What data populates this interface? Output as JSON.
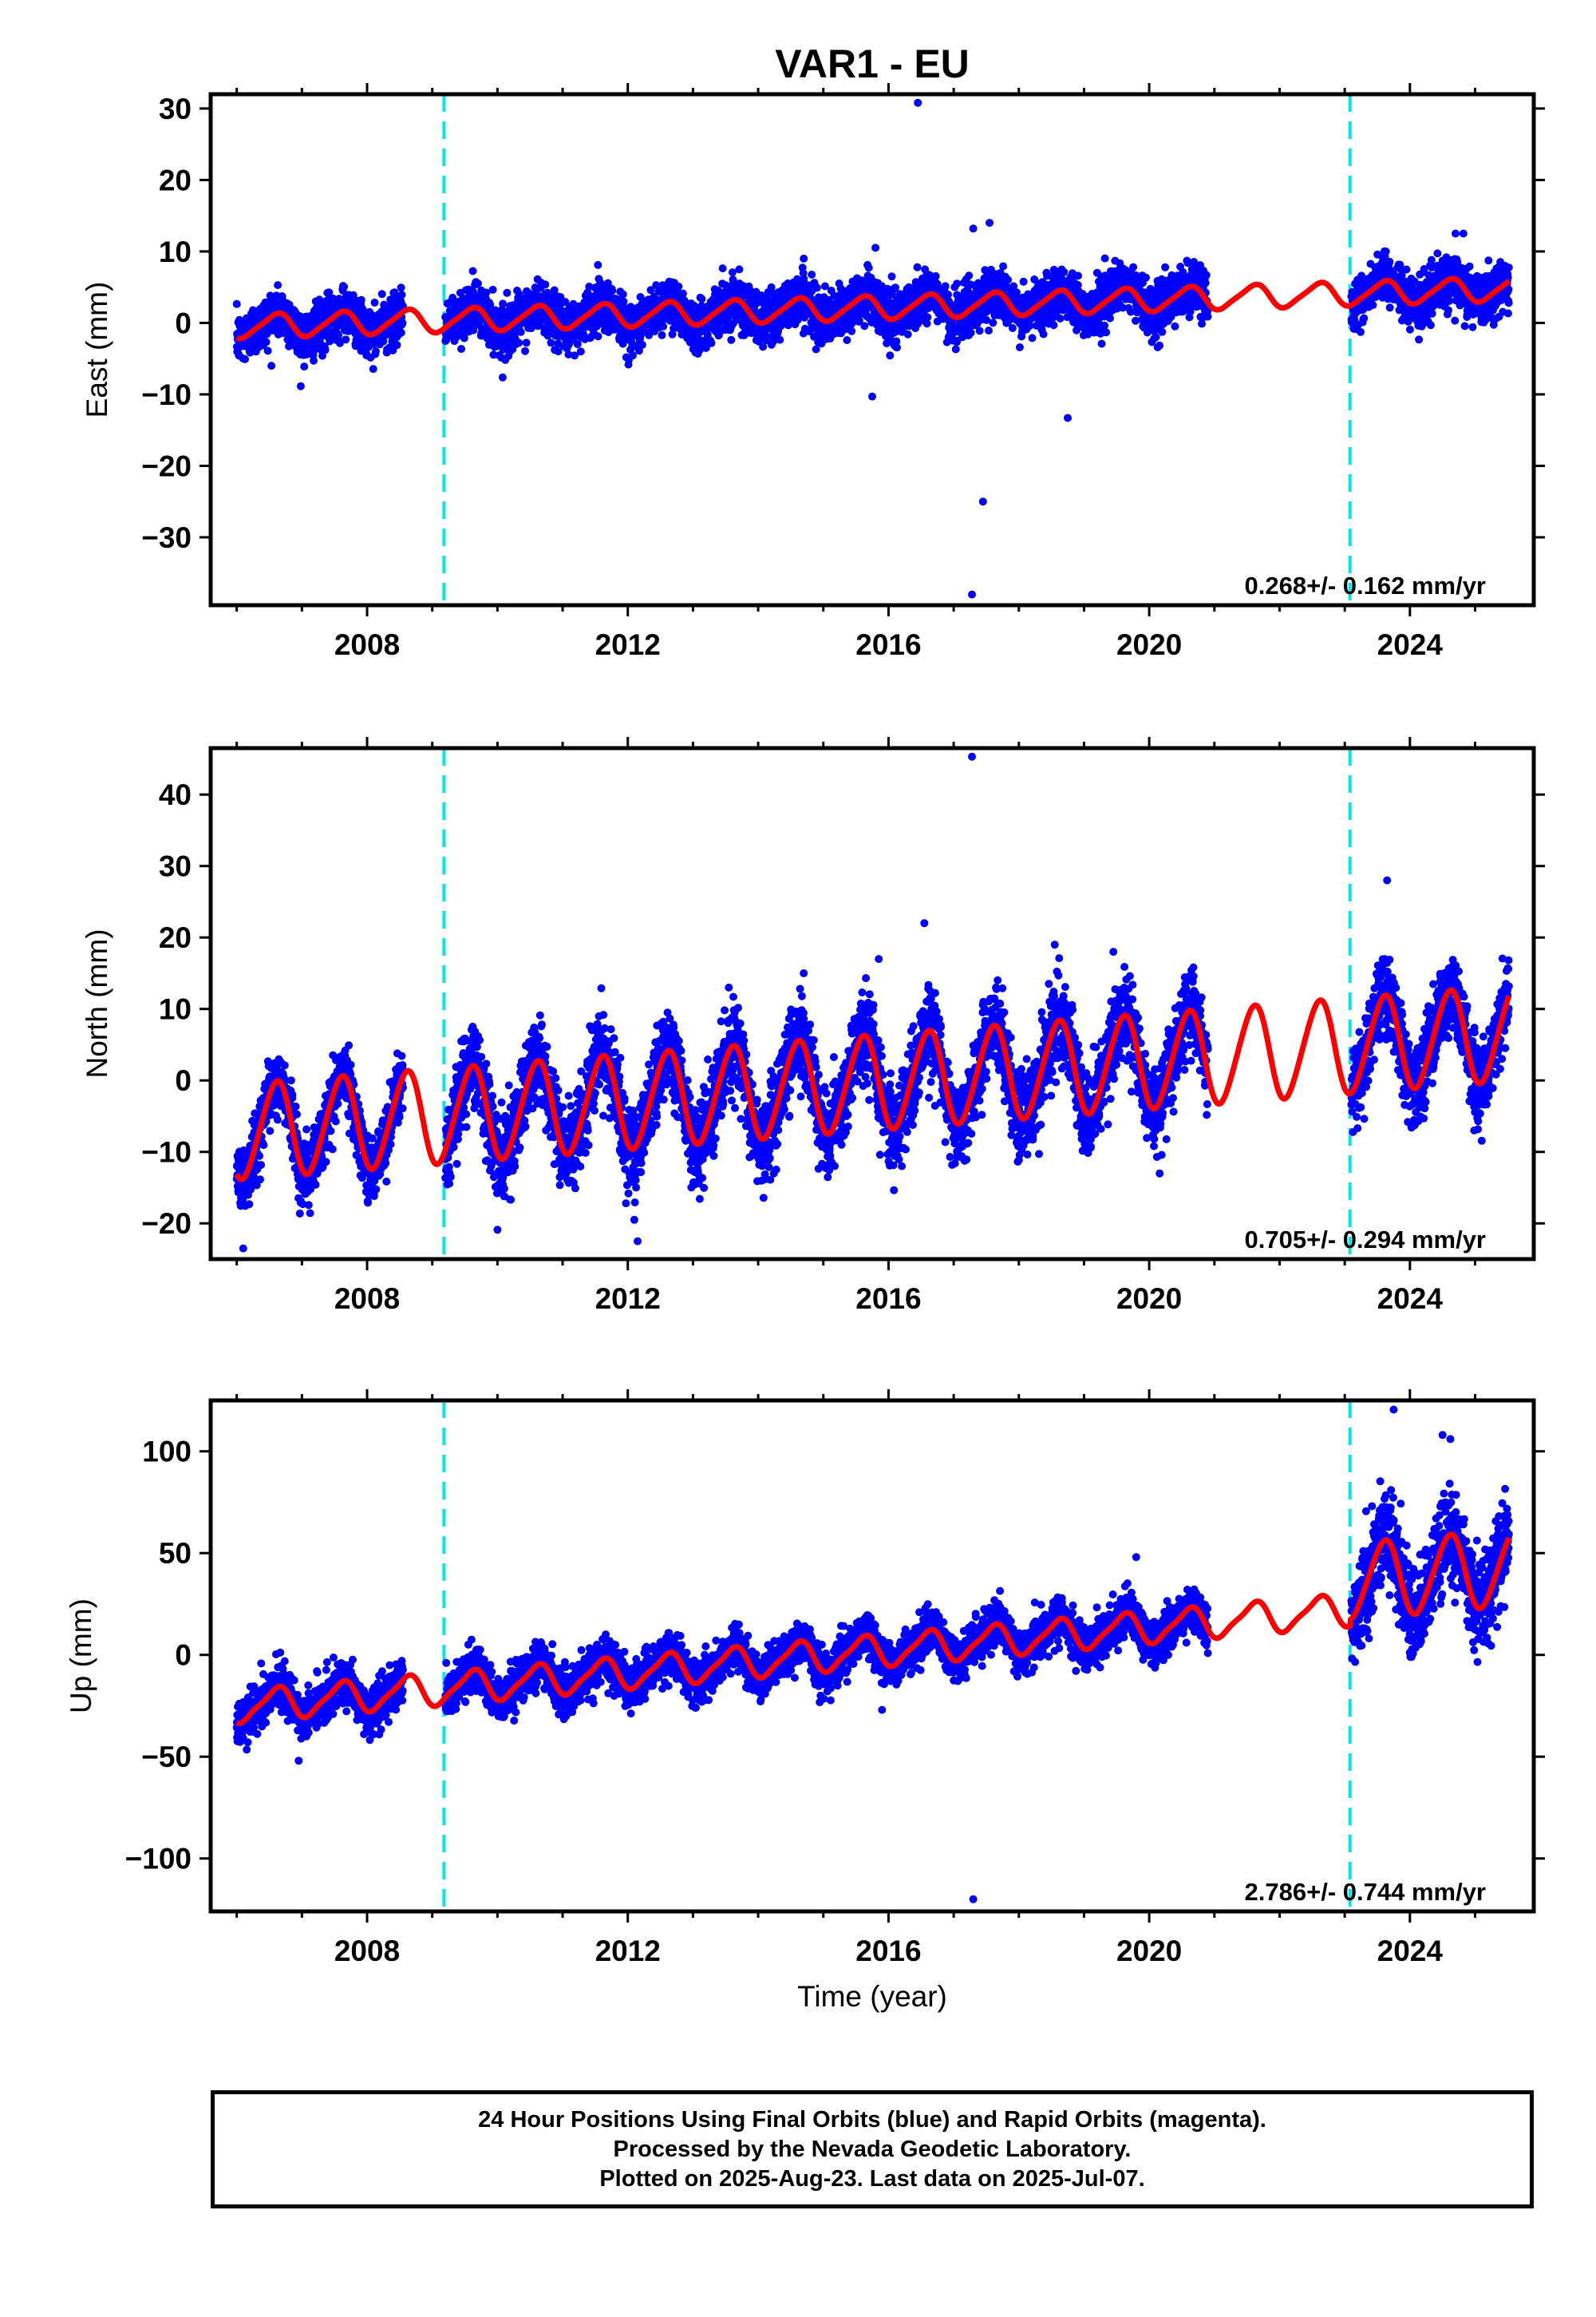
{
  "figure": {
    "title": "VAR1 - EU",
    "xlabel": "Time (year)"
  },
  "caption": {
    "line1": "24 Hour Positions Using Final Orbits (blue) and Rapid Orbits (magenta).",
    "line2": "Processed by the Nevada Geodetic Laboratory.",
    "line3": "Plotted on 2025-Aug-23. Last data on 2025-Jul-07."
  },
  "colors": {
    "data_points": "#0000ff",
    "model_fit": "#ff0000",
    "equipment_change": "#00e5ee"
  },
  "chart_data": [
    {
      "type": "scatter",
      "panel": "east",
      "ylabel": "East (mm)",
      "xlim": [
        2005.6,
        2025.9
      ],
      "ylim": [
        -39.5,
        32
      ],
      "yticks": [
        -30,
        -20,
        -10,
        0,
        10,
        20,
        30
      ],
      "xticks": [
        2008,
        2012,
        2016,
        2020,
        2024
      ],
      "velocity_label": "0.268+/- 0.162 mm/yr",
      "velocity_mm_yr": 0.268,
      "offset": -0.5,
      "annual_amplitude": 1.6,
      "semiannual_amplitude": 0.3,
      "scatter_sigma": 1.7,
      "data_start": 2006.0,
      "data_end": 2025.52,
      "gap": [
        2008.55,
        2009.2
      ],
      "gap2": [
        2020.9,
        2023.1
      ],
      "dashed_lines_x": [
        2009.18,
        2023.08
      ],
      "step_at": 2009.18,
      "step": 0,
      "post_step": 0,
      "outliers": [
        [
          2016.45,
          30.8
        ],
        [
          2017.3,
          13.2
        ],
        [
          2017.55,
          14.0
        ],
        [
          2017.45,
          -25
        ],
        [
          2017.28,
          -38
        ],
        [
          2015.75,
          -10.3
        ],
        [
          2018.75,
          -13.3
        ],
        [
          2014.7,
          9.0
        ],
        [
          2015.8,
          10.5
        ],
        [
          2024.7,
          12.5
        ],
        [
          2024.82,
          12.5
        ],
        [
          2017.05,
          5.5
        ],
        [
          2016.05,
          6.5
        ]
      ]
    },
    {
      "type": "scatter",
      "panel": "north",
      "ylabel": "North (mm)",
      "xlim": [
        2005.6,
        2025.9
      ],
      "ylim": [
        -25,
        46.5
      ],
      "yticks": [
        -20,
        -10,
        0,
        10,
        20,
        30,
        40
      ],
      "xticks": [
        2008,
        2012,
        2016,
        2020,
        2024
      ],
      "velocity_label": "0.705+/- 0.294 mm/yr",
      "velocity_mm_yr": 0.705,
      "offset": -7.2,
      "annual_amplitude": 6.6,
      "semiannual_amplitude": 0.6,
      "scatter_sigma": 2.1,
      "data_start": 2006.0,
      "data_end": 2025.52,
      "gap": [
        2008.55,
        2009.2
      ],
      "gap2": [
        2020.9,
        2023.1
      ],
      "dashed_lines_x": [
        2009.18,
        2023.08
      ],
      "step_at": 2009.18,
      "step": 0,
      "post_step": 0,
      "outliers": [
        [
          2017.28,
          45.3
        ],
        [
          2016.55,
          22.0
        ],
        [
          2023.65,
          28.0
        ],
        [
          2012.15,
          -22.5
        ],
        [
          2006.1,
          -23.5
        ],
        [
          2012.1,
          -19.5
        ],
        [
          2019.45,
          18.0
        ],
        [
          2018.55,
          19.0
        ],
        [
          2015.85,
          17.0
        ],
        [
          2014.7,
          15.0
        ],
        [
          2013.55,
          13.0
        ]
      ]
    },
    {
      "type": "scatter",
      "panel": "up",
      "ylabel": "Up (mm)",
      "xlim": [
        2005.6,
        2025.9
      ],
      "ylim": [
        -126,
        125
      ],
      "yticks": [
        -100,
        -50,
        0,
        50,
        100
      ],
      "xticks": [
        2008,
        2012,
        2016,
        2020,
        2024
      ],
      "velocity_label": "2.786+/- 0.744 mm/yr",
      "velocity_mm_yr": 2.786,
      "offset": -25.5,
      "annual_amplitude": 7.5,
      "semiannual_amplitude": 1.8,
      "scatter_sigma": 5.2,
      "data_start": 2006.0,
      "data_end": 2025.52,
      "gap": [
        2008.55,
        2009.2
      ],
      "gap2": [
        2020.9,
        2023.1
      ],
      "dashed_lines_x": [
        2009.18,
        2023.08
      ],
      "step_at": 2023.08,
      "step": 14,
      "post_step": 1,
      "outliers": [
        [
          2017.3,
          -120
        ],
        [
          2023.75,
          120.5
        ],
        [
          2024.5,
          108
        ],
        [
          2024.62,
          106
        ],
        [
          2015.9,
          -27
        ],
        [
          2006.95,
          -52
        ],
        [
          2019.8,
          48
        ]
      ]
    }
  ]
}
